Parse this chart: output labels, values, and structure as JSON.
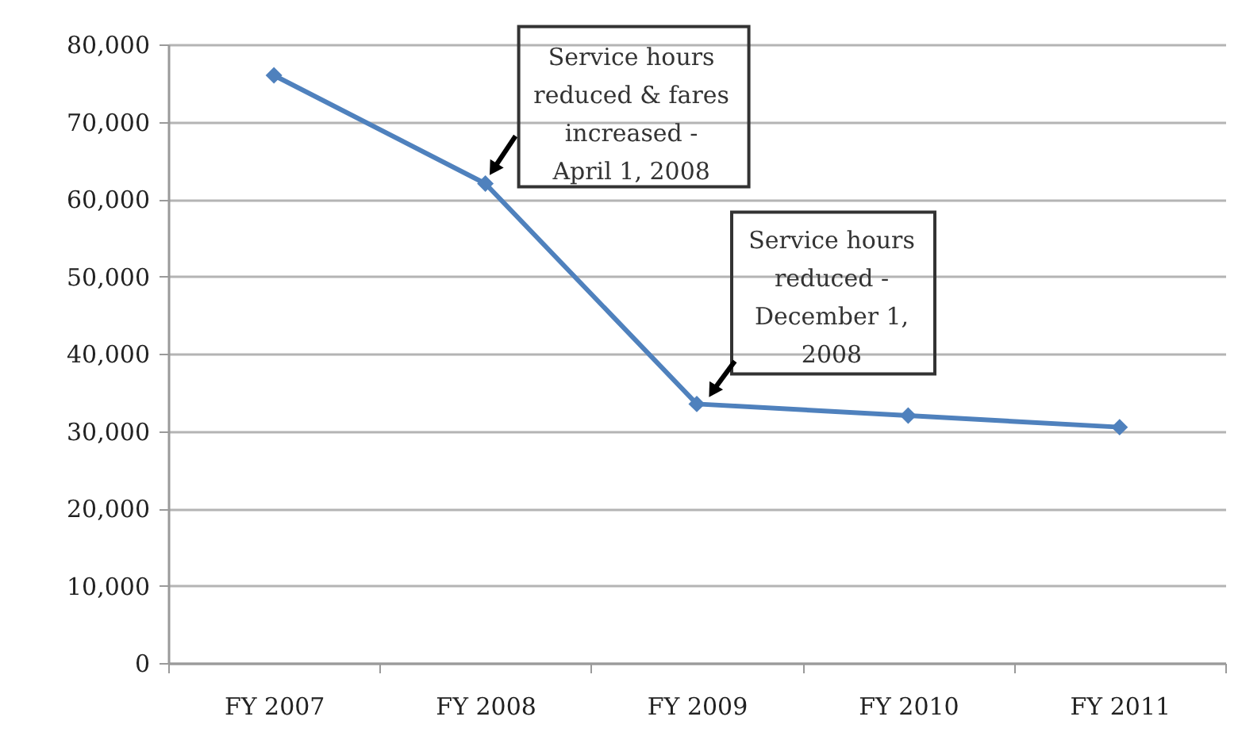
{
  "chart_data": {
    "type": "line",
    "categories": [
      "FY 2007",
      "FY 2008",
      "FY 2009",
      "FY 2010",
      "FY 2011"
    ],
    "series": [
      {
        "color": "#4f81bd",
        "values": [
          76000,
          62000,
          33500,
          32000,
          30500
        ]
      }
    ],
    "ylim": [
      0,
      80000
    ],
    "yticks": [
      0,
      {
        "value": 10000,
        "label": "10,000"
      },
      {
        "value": 20000,
        "label": "20,000"
      },
      {
        "value": 30000,
        "label": "30,000"
      },
      {
        "value": 40000,
        "label": "40,000"
      },
      {
        "value": 50000,
        "label": "50,000"
      },
      {
        "value": 60000,
        "label": "60,000"
      },
      {
        "value": 70000,
        "label": "70,000"
      },
      {
        "value": 80000,
        "label": "80,000"
      }
    ],
    "grid": "y",
    "marker": "diamond",
    "line_style": "solid",
    "annotations": [
      {
        "text": "Service hours reduced & fares increased - April 1, 2008",
        "x": "FY 2008",
        "y": 62000
      },
      {
        "text": "Service hours reduced - December 1, 2008",
        "x": "FY 2009",
        "y": 33500
      }
    ]
  }
}
